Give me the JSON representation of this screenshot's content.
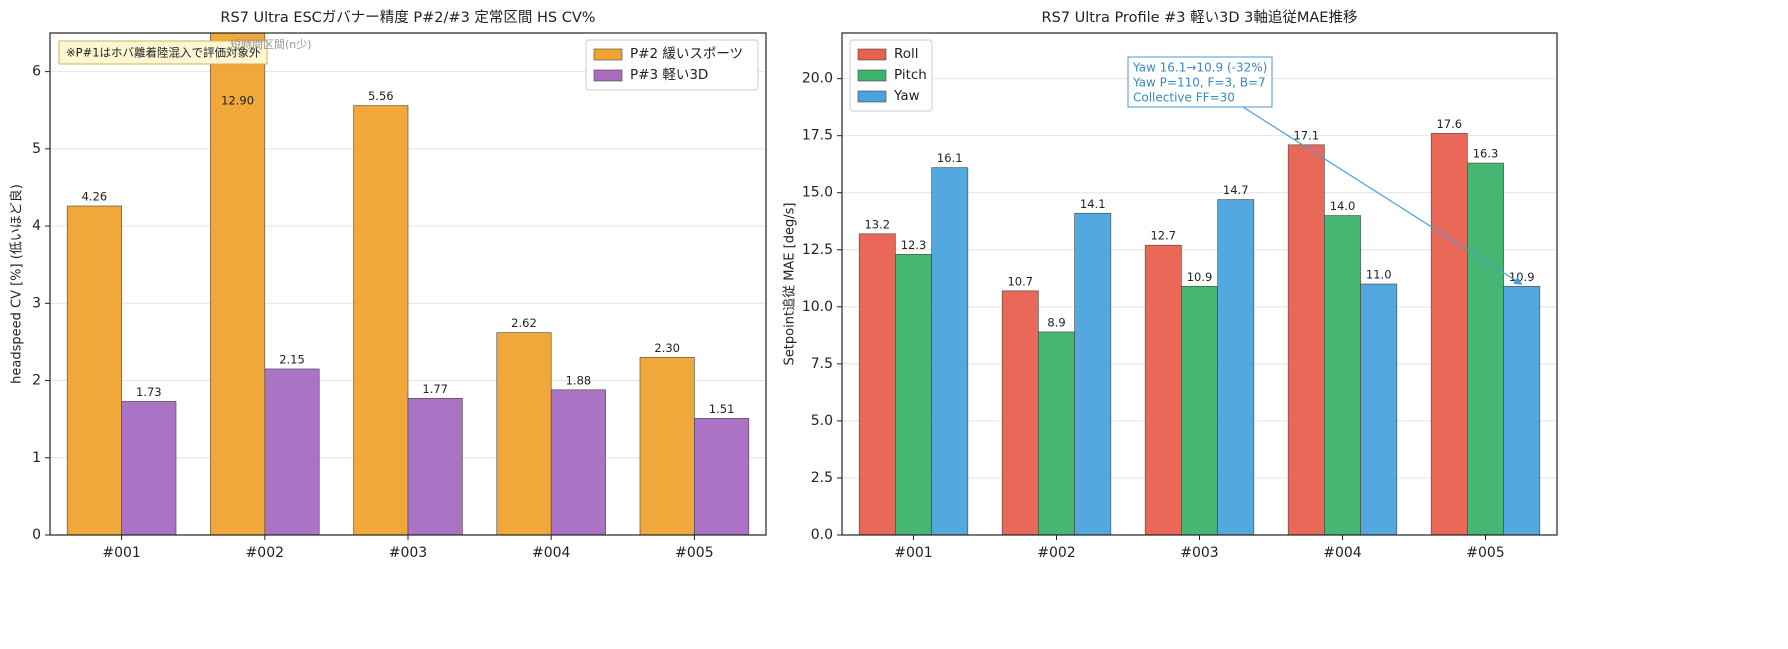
{
  "chart_data": [
    {
      "type": "bar",
      "title": "RS7 Ultra ESCガバナー精度  P#2/#3 定常区間 HS CV%",
      "y_label": "headspeed CV [%]  (低いほど良)",
      "categories": [
        "#001",
        "#002",
        "#003",
        "#004",
        "#005"
      ],
      "series": [
        {
          "name": "P#2 緩いスポーツ",
          "color": "#f0a330",
          "values": [
            4.26,
            12.9,
            5.56,
            2.62,
            2.3
          ],
          "value_labels": [
            "4.26",
            "12.90",
            "5.56",
            "2.62",
            "2.30"
          ]
        },
        {
          "name": "P#3 軽い3D",
          "color": "#a76cc0",
          "values": [
            1.73,
            2.15,
            1.77,
            1.88,
            1.51
          ],
          "value_labels": [
            "1.73",
            "2.15",
            "1.77",
            "1.88",
            "1.51"
          ]
        }
      ],
      "ylim": [
        0,
        6.5
      ],
      "yticks": [
        0,
        1,
        2,
        3,
        4,
        5,
        6
      ],
      "grid": true,
      "legend": "upper right",
      "annotation": "※P#1はホバ離着陸混入で評価対象外",
      "note": "短時間区間(n少)"
    },
    {
      "type": "bar",
      "title": "RS7 Ultra Profile #3 軽い3D  3軸追従MAE推移",
      "y_label": "Setpoint追従 MAE [deg/s]",
      "categories": [
        "#001",
        "#002",
        "#003",
        "#004",
        "#005"
      ],
      "series": [
        {
          "name": "Roll",
          "color": "#e8604f",
          "values": [
            13.2,
            10.7,
            12.7,
            17.1,
            17.6
          ],
          "value_labels": [
            "13.2",
            "10.7",
            "12.7",
            "17.1",
            "17.6"
          ]
        },
        {
          "name": "Pitch",
          "color": "#3cb36a",
          "values": [
            12.3,
            8.9,
            10.9,
            14,
            16.3
          ],
          "value_labels": [
            "12.3",
            "8.9",
            "10.9",
            "14.0",
            "16.3"
          ]
        },
        {
          "name": "Yaw",
          "color": "#4aa3dd",
          "values": [
            16.1,
            14.1,
            14.7,
            11,
            10.9
          ],
          "value_labels": [
            "16.1",
            "14.1",
            "14.7",
            "11.0",
            "10.9"
          ]
        }
      ],
      "ylim": [
        0,
        22
      ],
      "yticks": [
        {
          "value": 0,
          "label": "0.0"
        },
        2.5,
        {
          "value": 5,
          "label": "5.0"
        },
        7.5,
        {
          "value": 10,
          "label": "10.0"
        },
        12.5,
        {
          "value": 15,
          "label": "15.0"
        },
        17.5,
        {
          "value": 20,
          "label": "20.0"
        }
      ],
      "grid": true,
      "legend": "upper left",
      "annotation": [
        "Yaw 16.1→10.9 (-32%)",
        "Yaw P=110, F=3, B=7",
        "Collective FF=30"
      ]
    }
  ]
}
